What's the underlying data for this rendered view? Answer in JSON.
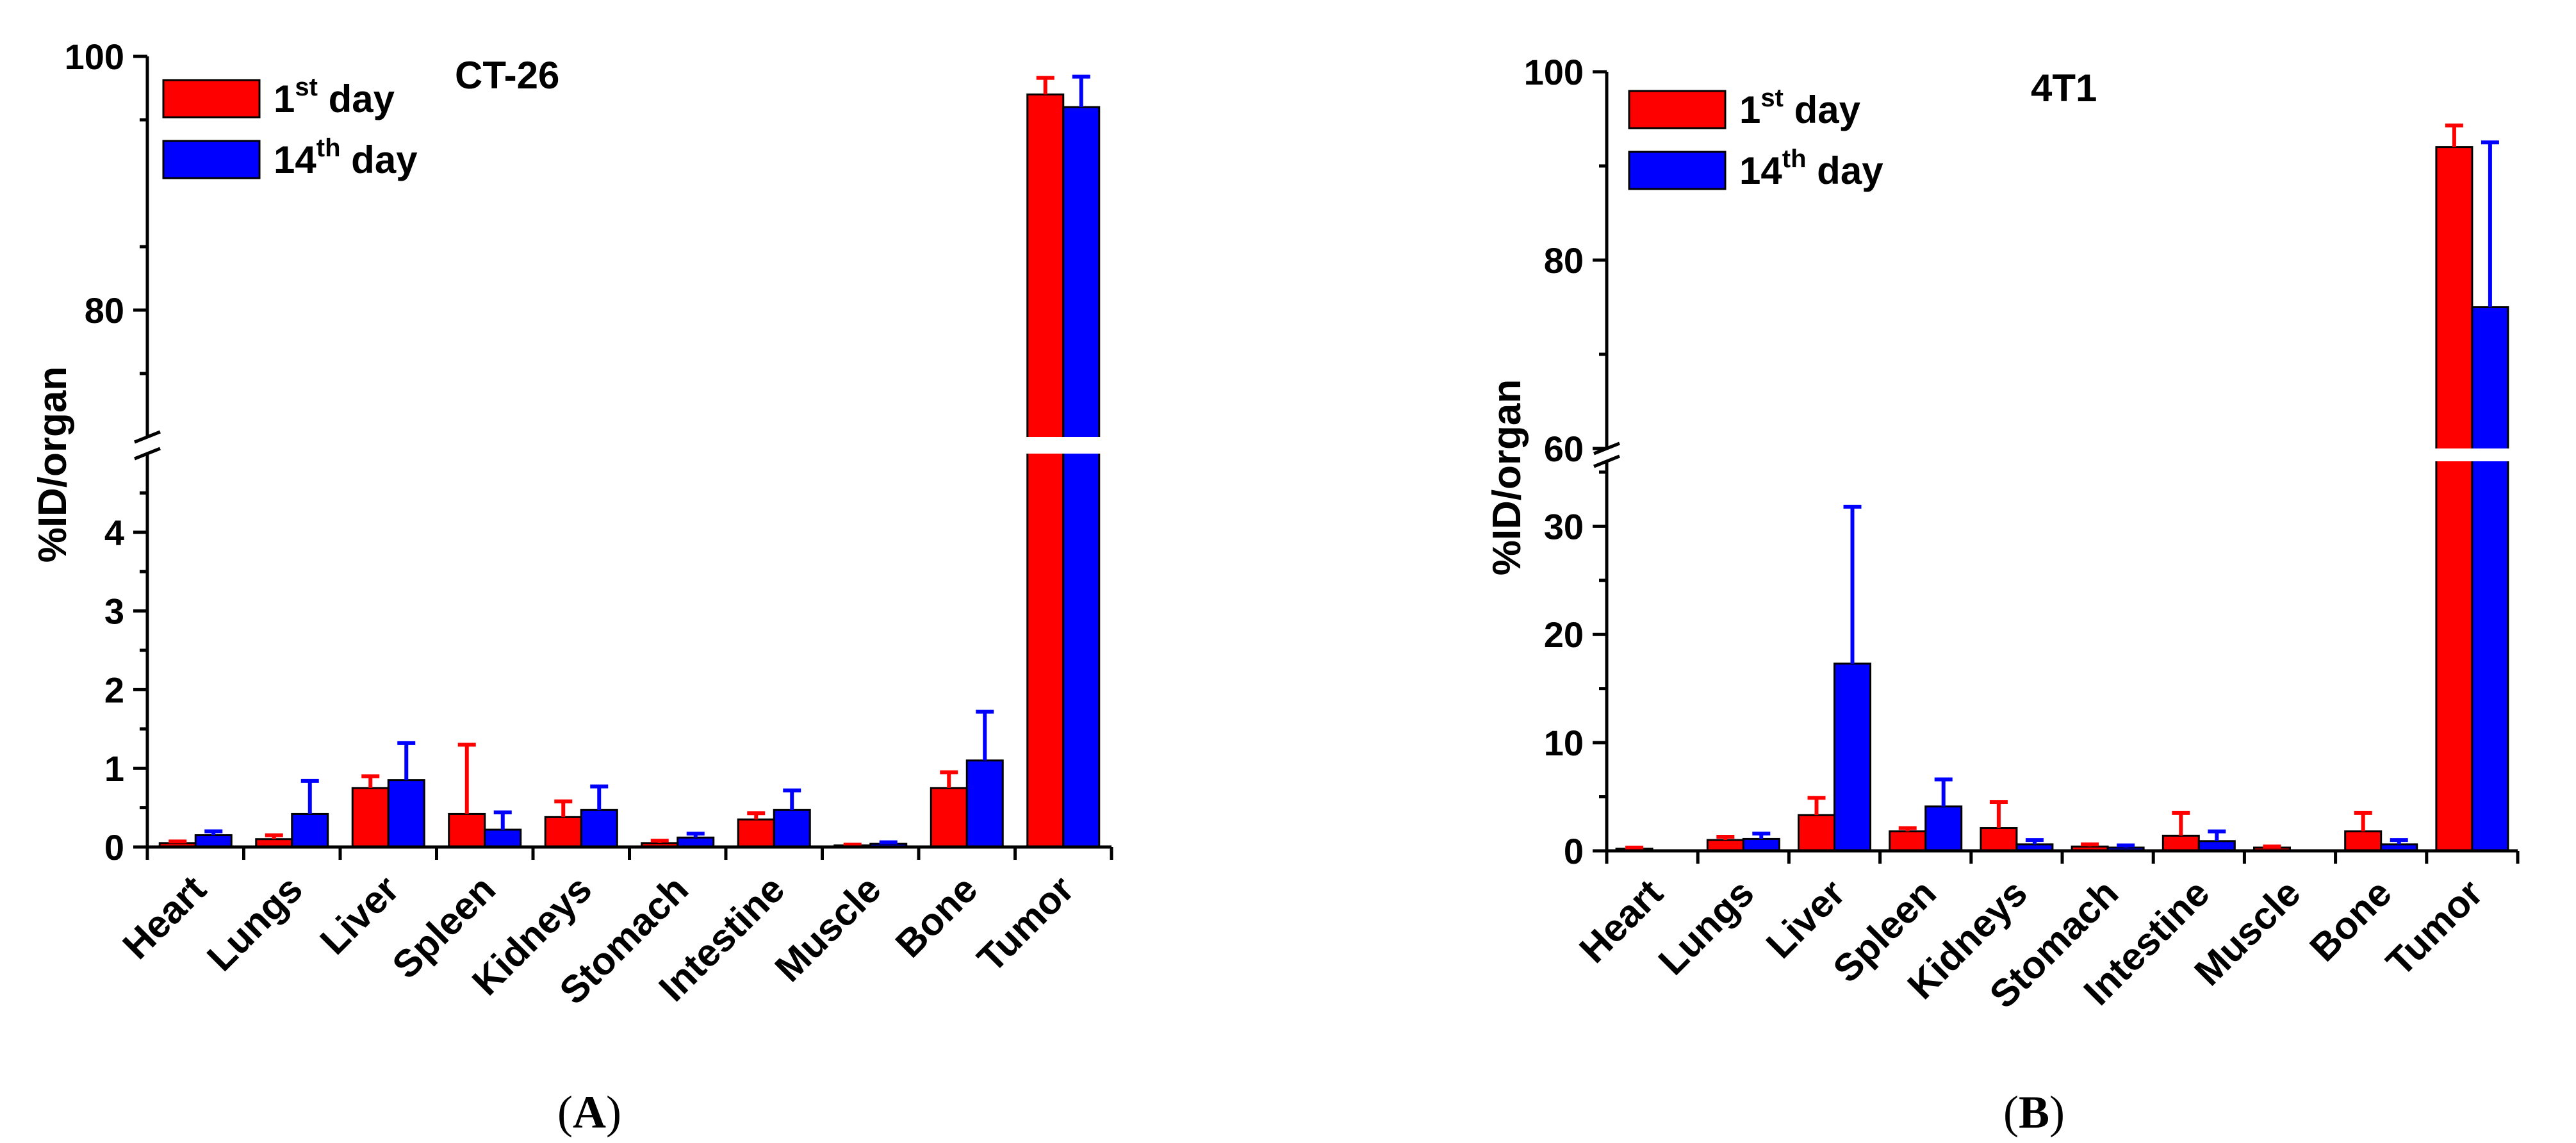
{
  "chart_data": [
    {
      "type": "bar",
      "panel_label": "A",
      "title": "CT-26",
      "ylabel": "%ID/organ",
      "xlabel": "",
      "categories": [
        "Heart",
        "Lungs",
        "Liver",
        "Spleen",
        "Kidneys",
        "Stomach",
        "Intestine",
        "Muscle",
        "Bone",
        "Tumor"
      ],
      "series": [
        {
          "name": "1st day",
          "label_base": "1",
          "label_sup": "st",
          "label_rest": " day",
          "color": "#ff0000",
          "values": [
            0.05,
            0.1,
            0.75,
            0.42,
            0.38,
            0.05,
            0.35,
            0.02,
            0.75,
            97.0
          ],
          "errors": [
            0.02,
            0.05,
            0.15,
            0.88,
            0.2,
            0.03,
            0.08,
            0.01,
            0.2,
            1.3
          ]
        },
        {
          "name": "14th day",
          "label_base": "14",
          "label_sup": "th",
          "label_rest": " day",
          "color": "#0000ff",
          "values": [
            0.15,
            0.42,
            0.85,
            0.22,
            0.47,
            0.12,
            0.47,
            0.04,
            1.1,
            96.0
          ],
          "errors": [
            0.05,
            0.42,
            0.47,
            0.22,
            0.3,
            0.05,
            0.25,
            0.02,
            0.62,
            2.4
          ]
        }
      ],
      "broken_axis": {
        "lower_ylim": [
          0,
          5
        ],
        "upper_ylim": [
          70,
          100
        ]
      },
      "yticks_lower": [
        0,
        1,
        2,
        3,
        4
      ],
      "yticks_upper": [
        80,
        100
      ]
    },
    {
      "type": "bar",
      "panel_label": "B",
      "title": "4T1",
      "ylabel": "%ID/organ",
      "xlabel": "",
      "categories": [
        "Heart",
        "Lungs",
        "Liver",
        "Spleen",
        "Kidneys",
        "Stomach",
        "Intestine",
        "Muscle",
        "Bone",
        "Tumor"
      ],
      "series": [
        {
          "name": "1st day",
          "label_base": "1",
          "label_sup": "st",
          "label_rest": " day",
          "color": "#ff0000",
          "values": [
            0.2,
            1.0,
            3.3,
            1.8,
            2.1,
            0.4,
            1.4,
            0.3,
            1.8,
            92.0
          ],
          "errors": [
            0.1,
            0.3,
            1.6,
            0.3,
            2.4,
            0.2,
            2.1,
            0.1,
            1.7,
            2.3
          ]
        },
        {
          "name": "14th day",
          "label_base": "14",
          "label_sup": "th",
          "label_rest": " day",
          "color": "#0000ff",
          "values": [
            0.0,
            1.1,
            17.3,
            4.1,
            0.6,
            0.3,
            0.9,
            0.0,
            0.6,
            75.0
          ],
          "errors": [
            0.0,
            0.5,
            14.5,
            2.5,
            0.4,
            0.2,
            0.9,
            0.0,
            0.4,
            17.5
          ]
        }
      ],
      "broken_axis": {
        "lower_ylim": [
          0,
          36
        ],
        "upper_ylim": [
          60,
          100
        ]
      },
      "yticks_lower": [
        0,
        10,
        20,
        30
      ],
      "yticks_upper": [
        60,
        80,
        100
      ]
    }
  ]
}
